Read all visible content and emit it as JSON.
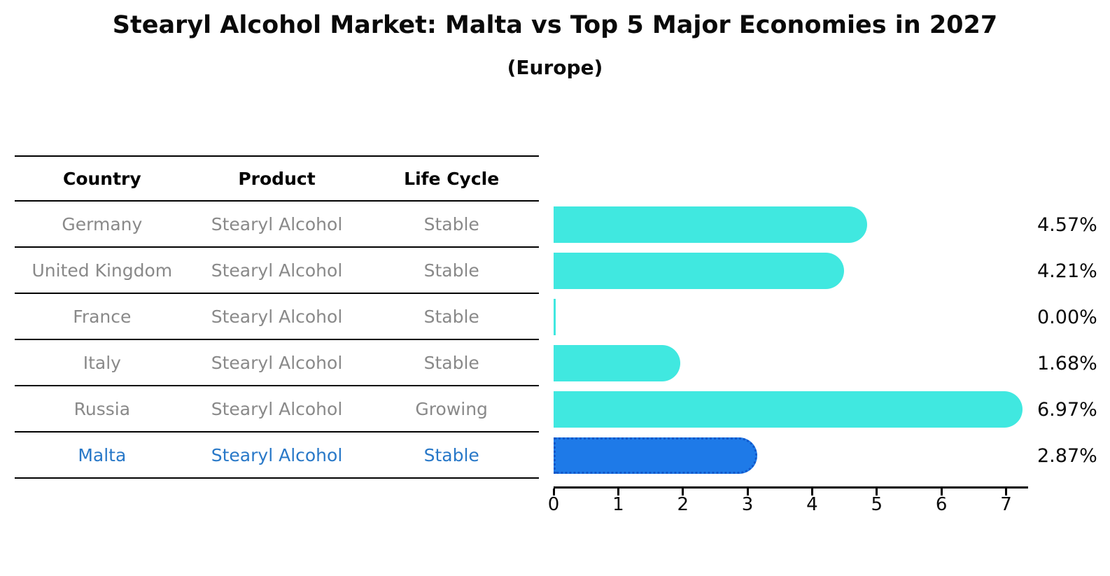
{
  "header": {
    "title": "Stearyl Alcohol Market: Malta vs Top 5 Major Economies in 2027",
    "subtitle": "(Europe)"
  },
  "table": {
    "columns": [
      "Country",
      "Product",
      "Life Cycle"
    ],
    "rows": [
      {
        "country": "Germany",
        "product": "Stearyl Alcohol",
        "life_cycle": "Stable",
        "highlight": false
      },
      {
        "country": "United Kingdom",
        "product": "Stearyl Alcohol",
        "life_cycle": "Stable",
        "highlight": false
      },
      {
        "country": "France",
        "product": "Stearyl Alcohol",
        "life_cycle": "Stable",
        "highlight": false
      },
      {
        "country": "Italy",
        "product": "Stearyl Alcohol",
        "life_cycle": "Stable",
        "highlight": false
      },
      {
        "country": "Russia",
        "product": "Stearyl Alcohol",
        "life_cycle": "Growing",
        "highlight": false
      },
      {
        "country": "Malta",
        "product": "Stearyl Alcohol",
        "life_cycle": "Stable",
        "highlight": true
      }
    ]
  },
  "chart_data": {
    "type": "bar",
    "orientation": "horizontal",
    "title": "Stearyl Alcohol Market: Malta vs Top 5 Major Economies in 2027",
    "subtitle": "(Europe)",
    "categories": [
      "Germany",
      "United Kingdom",
      "France",
      "Italy",
      "Russia",
      "Malta"
    ],
    "values": [
      4.57,
      4.21,
      0.0,
      1.68,
      6.97,
      2.87
    ],
    "value_labels": [
      "4.57%",
      "4.21%",
      "0.00%",
      "1.68%",
      "6.97%",
      "2.87%"
    ],
    "x_ticks": [
      0,
      1,
      2,
      3,
      4,
      5,
      6,
      7
    ],
    "xlim": [
      0,
      7.33
    ],
    "grid": false,
    "legend": "none",
    "bar_color": "#40e8e0",
    "highlight_index": 5,
    "highlight_bar_color": "#1e7ae8",
    "highlight_border_color": "#1157c9",
    "highlight_text_color": "#2878c8",
    "text_color_muted": "#898989"
  }
}
